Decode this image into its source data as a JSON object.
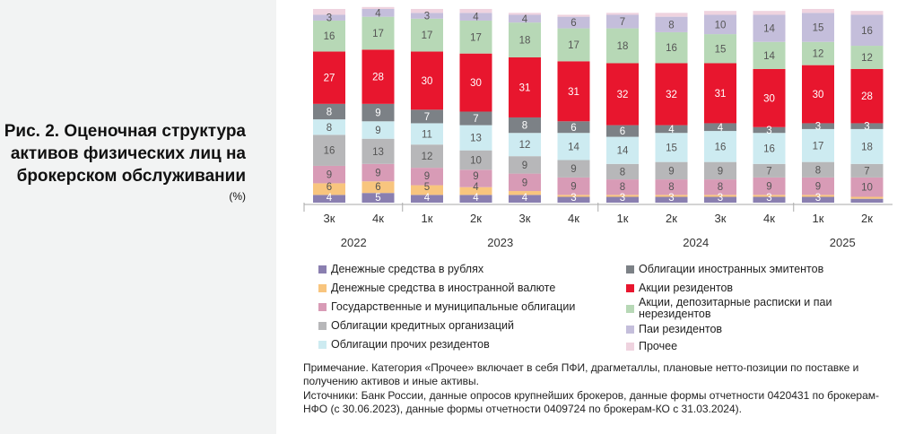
{
  "title": "Рис. 2. Оценочная структура активов физических лиц на брокерском обслуживании",
  "unit": "(%)",
  "chart_data": {
    "type": "stacked-bar",
    "title": "Рис. 2. Оценочная структура активов физических лиц на брокерском обслуживании",
    "ylabel": "(%)",
    "ylim": [
      0,
      100
    ],
    "grid": false,
    "legend_position": "bottom",
    "categories": [
      "3к",
      "4к",
      "1к",
      "2к",
      "3к",
      "4к",
      "1к",
      "2к",
      "3к",
      "4к",
      "1к",
      "2к"
    ],
    "years": [
      {
        "label": "2022",
        "span": [
          0,
          1
        ]
      },
      {
        "label": "2023",
        "span": [
          2,
          5
        ]
      },
      {
        "label": "2024",
        "span": [
          6,
          9
        ]
      },
      {
        "label": "2025",
        "span": [
          10,
          11
        ]
      }
    ],
    "series": [
      {
        "name": "Денежные средства в рублях",
        "color": "#8a7fb0",
        "values": [
          4,
          5,
          4,
          4,
          4,
          3,
          3,
          3,
          3,
          3,
          3,
          2
        ]
      },
      {
        "name": "Денежные средства в иностранной валюте",
        "color": "#f8c57e",
        "values": [
          6,
          6,
          5,
          4,
          2,
          1,
          1,
          1,
          1,
          1,
          1,
          1
        ]
      },
      {
        "name": "Государственные и муниципальные облигации",
        "color": "#d89bb6",
        "values": [
          9,
          9,
          9,
          9,
          9,
          9,
          8,
          8,
          8,
          9,
          9,
          10
        ]
      },
      {
        "name": "Облигации кредитных организаций",
        "color": "#b7b7b9",
        "values": [
          16,
          13,
          12,
          10,
          9,
          9,
          8,
          9,
          9,
          7,
          8,
          7
        ]
      },
      {
        "name": "Облигации прочих резидентов",
        "color": "#cdebf1",
        "values": [
          8,
          9,
          11,
          13,
          12,
          14,
          14,
          15,
          16,
          16,
          17,
          18
        ]
      },
      {
        "name": "Облигации иностранных эмитентов",
        "color": "#7c8186",
        "values": [
          8,
          9,
          7,
          7,
          8,
          6,
          6,
          4,
          4,
          3,
          3,
          3
        ]
      },
      {
        "name": "Акции резидентов",
        "color": "#e8162e",
        "values": [
          27,
          28,
          30,
          30,
          31,
          31,
          32,
          32,
          31,
          30,
          30,
          28
        ]
      },
      {
        "name": "Акции, депозитарные расписки и паи нерезидентов",
        "color": "#b7d8b6",
        "values": [
          16,
          17,
          17,
          17,
          18,
          17,
          18,
          16,
          15,
          14,
          12,
          12
        ]
      },
      {
        "name": "Паи резидентов",
        "color": "#c4bedb",
        "values": [
          3,
          4,
          3,
          4,
          4,
          6,
          7,
          8,
          10,
          14,
          15,
          16
        ]
      },
      {
        "name": "Прочее",
        "color": "#efd3df",
        "values": [
          3,
          1,
          2,
          2,
          1,
          1,
          1,
          2,
          2,
          2,
          2,
          2
        ]
      }
    ]
  },
  "notes": [
    "Примечание. Категория «Прочее» включает в себя ПФИ, драгметаллы, плановые нетто-позиции по поставке и получению активов и иные активы.",
    "Источники: Банк России, данные опросов крупнейших брокеров, данные формы отчетности 0420431 по брокерам-НФО (с 30.06.2023), данные формы отчетности 0409724 по брокерам-КО с 31.03.2024)."
  ]
}
